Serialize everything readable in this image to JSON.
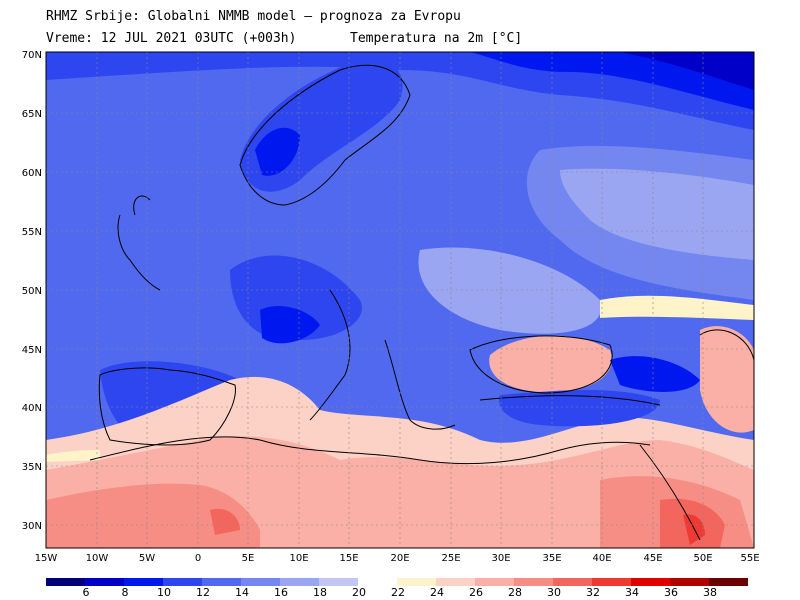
{
  "header": {
    "line1": "RHMZ Srbije: Globalni NMMB model — prognoza za Evropu",
    "line2": "Vreme: 12 JUL 2021 03UTC (+003h)",
    "line3": "Temperatura na 2m [°C]"
  },
  "axes": {
    "lat_labels": [
      "70N",
      "65N",
      "60N",
      "55N",
      "50N",
      "45N",
      "40N",
      "35N",
      "30N"
    ],
    "lon_labels": [
      "15W",
      "10W",
      "5W",
      "0",
      "5E",
      "10E",
      "15E",
      "20E",
      "25E",
      "30E",
      "35E",
      "40E",
      "45E",
      "50E",
      "55E"
    ]
  },
  "colorbar": {
    "labels": [
      "6",
      "8",
      "10",
      "12",
      "14",
      "16",
      "18",
      "20",
      "22",
      "24",
      "26",
      "28",
      "30",
      "32",
      "34",
      "36",
      "38"
    ],
    "colors": [
      "#00007a",
      "#0000c8",
      "#0018f0",
      "#2d46f0",
      "#5069ef",
      "#7486ef",
      "#9aa6f2",
      "#c2c6f6",
      "#ffffff",
      "#fff3c9",
      "#fdd2c6",
      "#fab0a6",
      "#f78e86",
      "#f2665e",
      "#ee3a32",
      "#e00000",
      "#b20000",
      "#6b0000"
    ]
  }
}
